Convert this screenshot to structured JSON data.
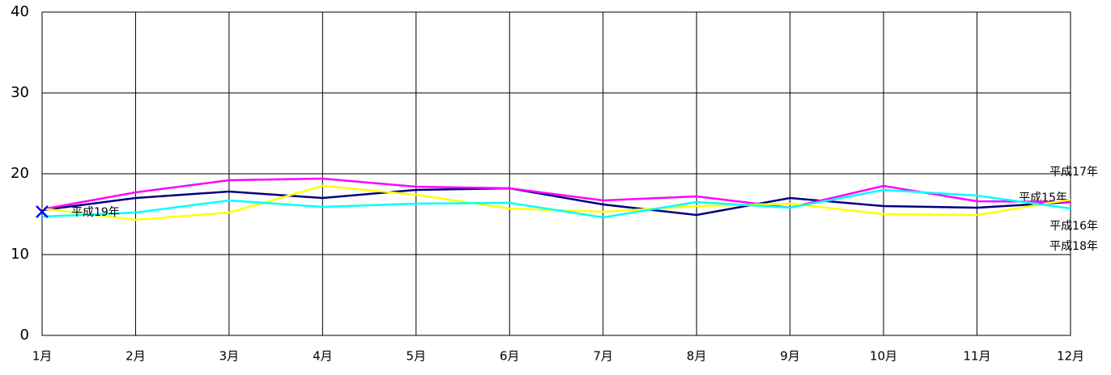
{
  "chart_data": {
    "type": "line",
    "categories": [
      "1月",
      "2月",
      "3月",
      "4月",
      "5月",
      "6月",
      "7月",
      "8月",
      "9月",
      "10月",
      "11月",
      "12月"
    ],
    "ylim": [
      0,
      40
    ],
    "yticks": [
      0,
      10,
      20,
      30,
      40
    ],
    "grid": true,
    "series": [
      {
        "name": "平成15年",
        "color": "#000080",
        "values": [
          15.5,
          17.0,
          17.8,
          17.0,
          18.0,
          18.2,
          16.2,
          14.9,
          17.0,
          16.0,
          15.8,
          16.5
        ]
      },
      {
        "name": "平成17年",
        "color": "#ff00ff",
        "values": [
          15.6,
          17.7,
          19.2,
          19.4,
          18.4,
          18.2,
          16.7,
          17.2,
          15.8,
          18.5,
          16.6,
          16.5
        ]
      },
      {
        "name": "平成16年",
        "color": "#ffff00",
        "values": [
          15.7,
          14.3,
          15.2,
          18.5,
          17.4,
          15.7,
          15.3,
          16.0,
          16.3,
          15.0,
          14.9,
          16.8
        ]
      },
      {
        "name": "平成18年",
        "color": "#00ffff",
        "values": [
          14.7,
          15.2,
          16.7,
          15.9,
          16.3,
          16.4,
          14.6,
          16.5,
          15.8,
          18.0,
          17.3,
          15.7
        ]
      },
      {
        "name": "平成19年",
        "color": "#0000ff",
        "marker": "x",
        "values": [
          15.3,
          null,
          null,
          null,
          null,
          null,
          null,
          null,
          null,
          null,
          null,
          null
        ]
      }
    ]
  }
}
